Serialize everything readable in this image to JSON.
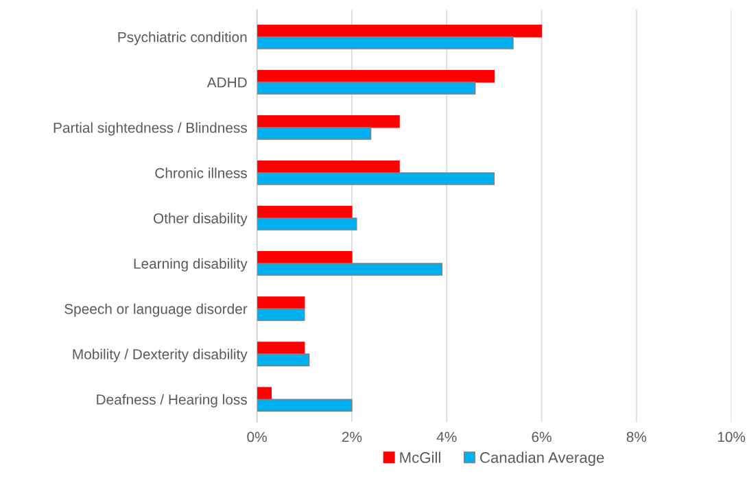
{
  "chart_data": {
    "type": "bar",
    "orientation": "horizontal",
    "categories": [
      "Psychiatric condition",
      "ADHD",
      "Partial sightedness / Blindness",
      "Chronic illness",
      "Other disability",
      "Learning disability",
      "Speech or language disorder",
      "Mobility / Dexterity disability",
      "Deafness / Hearing loss"
    ],
    "series": [
      {
        "name": "McGill",
        "color": "#ff0000",
        "values": [
          6.0,
          5.0,
          3.0,
          3.0,
          2.0,
          2.0,
          1.0,
          1.0,
          0.3
        ]
      },
      {
        "name": "Canadian Average",
        "color": "#00b0f0",
        "values": [
          5.4,
          4.6,
          2.4,
          5.0,
          2.1,
          3.9,
          1.0,
          1.1,
          2.0
        ]
      }
    ],
    "xlim": [
      0,
      10
    ],
    "xticks": [
      {
        "value": 0,
        "label": "0%"
      },
      {
        "value": 2,
        "label": "2%"
      },
      {
        "value": 4,
        "label": "4%"
      },
      {
        "value": 6,
        "label": "6%"
      },
      {
        "value": 8,
        "label": "8%"
      },
      {
        "value": 10,
        "label": "10%"
      }
    ],
    "grid": "x",
    "legend": "bottom"
  }
}
